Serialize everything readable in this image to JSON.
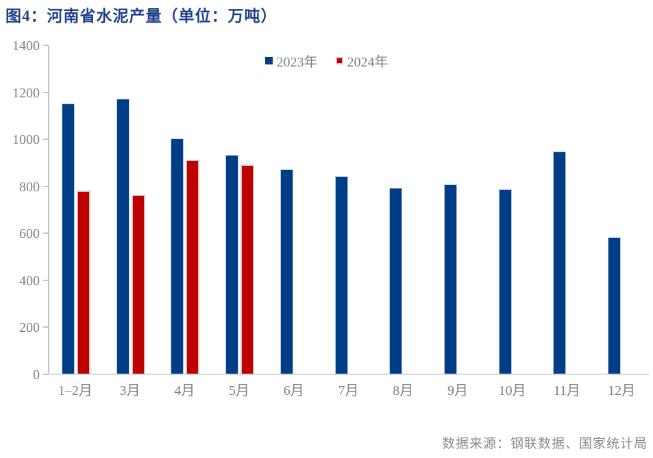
{
  "title": "图4：河南省水泥产量（单位：万吨）",
  "source": "数据来源：钢联数据、国家统计局",
  "colors": {
    "title_text": "#1e3f8a",
    "axis_text": "#808080",
    "legend_text": "#7f7f7f",
    "source_text": "#8a8a8a",
    "y_axis_line": "#c6c6c6",
    "x_axis_line": "#d9d9d9",
    "series_2023": "#003d87",
    "series_2023_border": "#b9c7de",
    "series_2024": "#c00000",
    "series_2024_border": "#c9c9c9"
  },
  "chart_data": {
    "type": "bar",
    "title": "图4：河南省水泥产量（单位：万吨）",
    "xlabel": "",
    "ylabel": "",
    "categories": [
      "1–2月",
      "3月",
      "4月",
      "5月",
      "6月",
      "7月",
      "8月",
      "9月",
      "10月",
      "11月",
      "12月"
    ],
    "series": [
      {
        "name": "2023年",
        "color": "#003d87",
        "border_color": "#b9c7de",
        "values": [
          1150,
          1170,
          1000,
          930,
          870,
          840,
          790,
          805,
          785,
          945,
          580
        ]
      },
      {
        "name": "2024年",
        "color": "#c00000",
        "border_color": "#c9c9c9",
        "values": [
          780,
          760,
          910,
          890,
          null,
          null,
          null,
          null,
          null,
          null,
          null
        ]
      }
    ],
    "ylim": [
      0,
      1400
    ],
    "yticks": [
      0,
      200,
      400,
      600,
      800,
      1000,
      1200,
      1400
    ],
    "grid": false,
    "legend_position": "top-center"
  }
}
